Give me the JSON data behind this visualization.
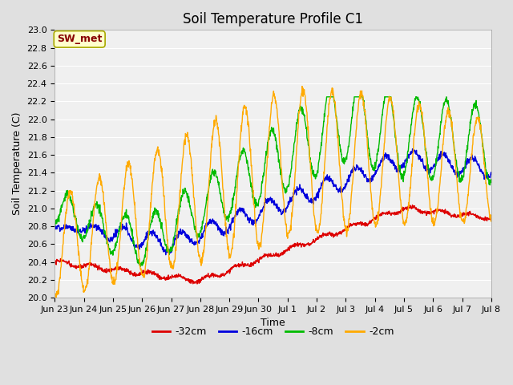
{
  "title": "Soil Temperature Profile C1",
  "xlabel": "Time",
  "ylabel": "Soil Temperature (C)",
  "ylim": [
    20.0,
    23.0
  ],
  "yticks": [
    20.0,
    20.2,
    20.4,
    20.6,
    20.8,
    21.0,
    21.2,
    21.4,
    21.6,
    21.8,
    22.0,
    22.2,
    22.4,
    22.6,
    22.8,
    23.0
  ],
  "xtick_labels": [
    "Jun 23",
    "Jun 24",
    "Jun 25",
    "Jun 26",
    "Jun 27",
    "Jun 28",
    "Jun 29",
    "Jun 30",
    "Jul 1",
    "Jul 2",
    "Jul 3",
    "Jul 4",
    "Jul 5",
    "Jul 6",
    "Jul 7",
    "Jul 8"
  ],
  "series_colors": [
    "#dd0000",
    "#0000dd",
    "#00bb00",
    "#ffaa00"
  ],
  "series_labels": [
    "-32cm",
    "-16cm",
    "-8cm",
    "-2cm"
  ],
  "annotation_text": "SW_met",
  "annotation_bg": "#ffffcc",
  "annotation_border": "#aaaa00",
  "annotation_text_color": "#880000",
  "fig_bg_color": "#e0e0e0",
  "plot_bg_color": "#f0f0f0",
  "grid_color": "#ffffff",
  "title_fontsize": 12,
  "axis_fontsize": 9,
  "tick_fontsize": 8,
  "legend_fontsize": 9,
  "n_days": 15,
  "pts_per_day": 96
}
